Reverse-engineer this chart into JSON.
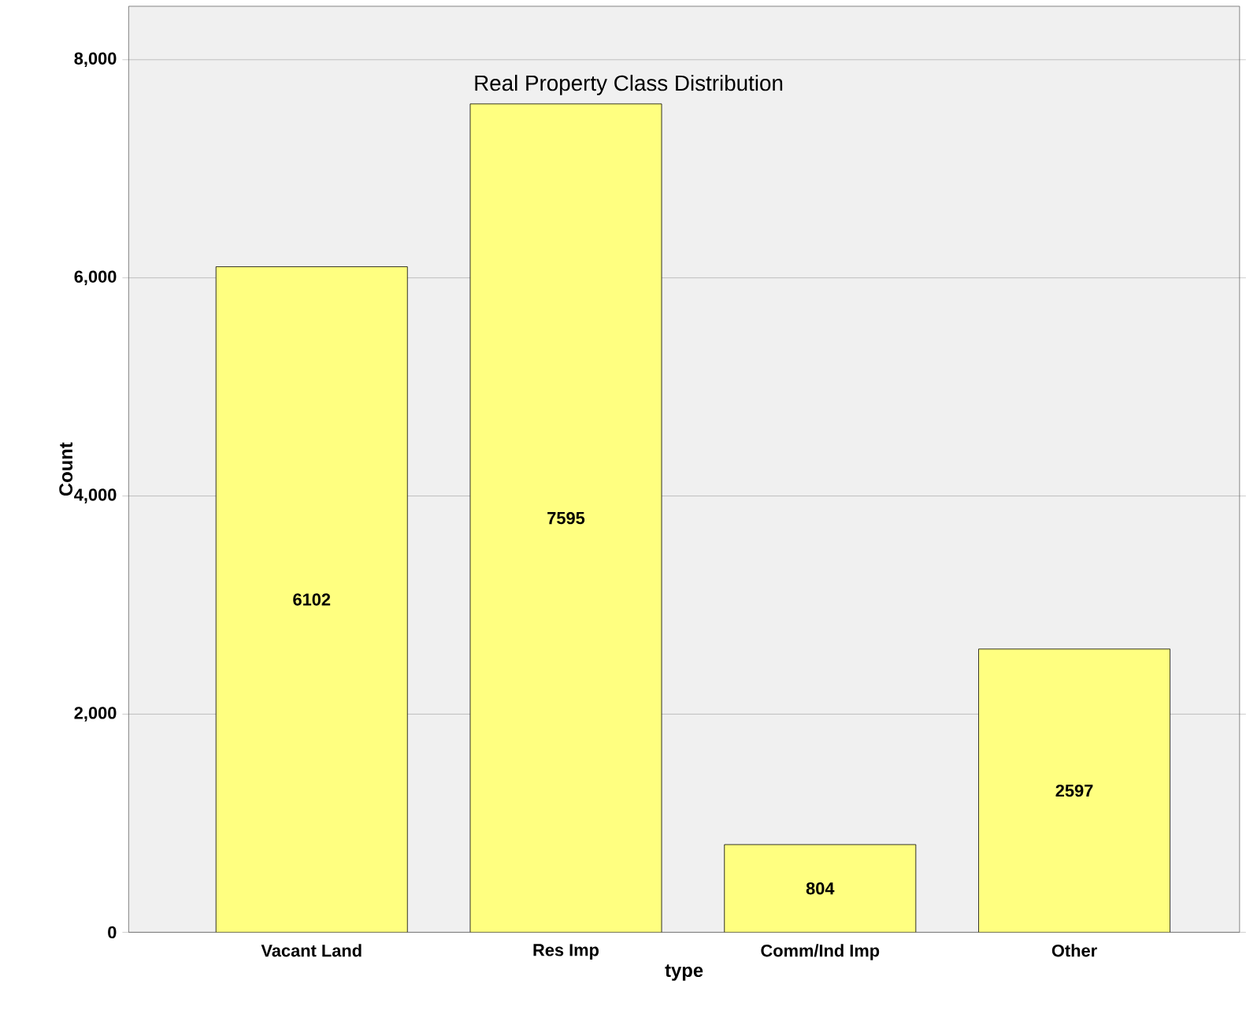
{
  "chart_data": {
    "type": "bar",
    "title": "Real Property Class Distribution",
    "xlabel": "type",
    "ylabel": "Count",
    "categories": [
      "Vacant Land",
      "Res Imp",
      "Comm/Ind Imp",
      "Other"
    ],
    "values": [
      6102,
      7595,
      804,
      2597
    ],
    "color": "#ffff80",
    "data_labels": true,
    "ylim": [
      0,
      8490
    ],
    "yticks": [
      0,
      {
        "value": 2000,
        "label": "2,000"
      },
      {
        "value": 4000,
        "label": "4,000"
      },
      {
        "value": 6000,
        "label": "6,000"
      },
      {
        "value": 8000,
        "label": "8,000"
      }
    ],
    "grid": "y"
  }
}
